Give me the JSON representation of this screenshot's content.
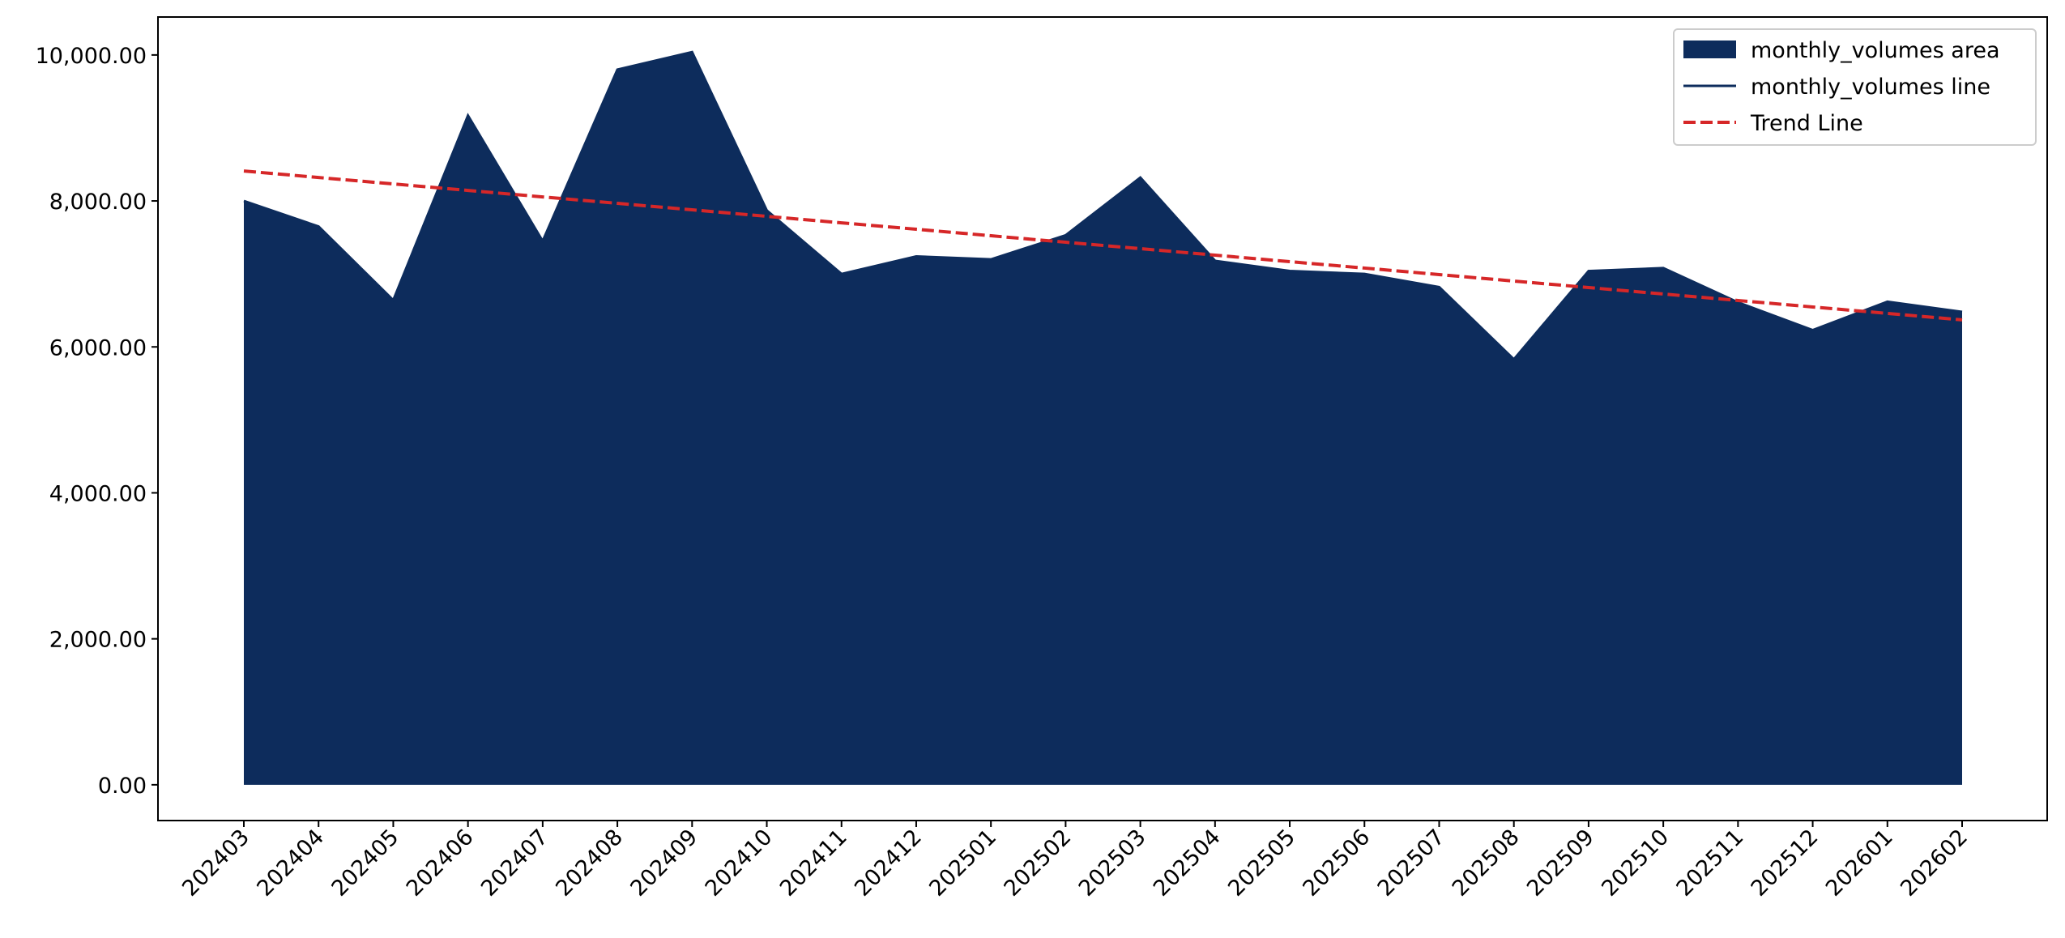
{
  "chart_data": {
    "type": "area",
    "categories": [
      "202403",
      "202404",
      "202405",
      "202406",
      "202407",
      "202408",
      "202409",
      "202410",
      "202411",
      "202412",
      "202501",
      "202502",
      "202503",
      "202504",
      "202505",
      "202506",
      "202507",
      "202508",
      "202509",
      "202510",
      "202511",
      "202512",
      "202601",
      "202602"
    ],
    "series": [
      {
        "name": "monthly_volumes area",
        "color": "#0d2c5c",
        "style": "area",
        "values": [
          8000,
          7650,
          6640,
          9170,
          7450,
          9800,
          10040,
          7870,
          7000,
          7240,
          7200,
          7530,
          8320,
          7180,
          7040,
          7000,
          6820,
          5830,
          7040,
          7080,
          6610,
          6230,
          6620,
          6480
        ]
      },
      {
        "name": "monthly_volumes line",
        "color": "#0d2c5c",
        "style": "solid",
        "values": [
          8000,
          7650,
          6640,
          9170,
          7450,
          9800,
          10040,
          7870,
          7000,
          7240,
          7200,
          7530,
          8320,
          7180,
          7040,
          7000,
          6820,
          5830,
          7040,
          7080,
          6610,
          6230,
          6620,
          6480
        ]
      },
      {
        "name": "Trend Line",
        "color": "#d62728",
        "style": "dashed",
        "values": [
          8410,
          8321,
          8233,
          8144,
          8055,
          7967,
          7878,
          7789,
          7700,
          7612,
          7523,
          7434,
          7346,
          7257,
          7168,
          7080,
          6991,
          6902,
          6813,
          6725,
          6636,
          6547,
          6459,
          6370
        ]
      }
    ],
    "ylim": [
      -490,
      10520
    ],
    "yticks": [
      {
        "value": 0,
        "label": "0.00"
      },
      {
        "value": 2000,
        "label": "2,000.00"
      },
      {
        "value": 4000,
        "label": "4,000.00"
      },
      {
        "value": 6000,
        "label": "6,000.00"
      },
      {
        "value": 8000,
        "label": "8,000.00"
      },
      {
        "value": 10000,
        "label": "10,000.00"
      }
    ],
    "grid": false,
    "legend": "upper right"
  }
}
